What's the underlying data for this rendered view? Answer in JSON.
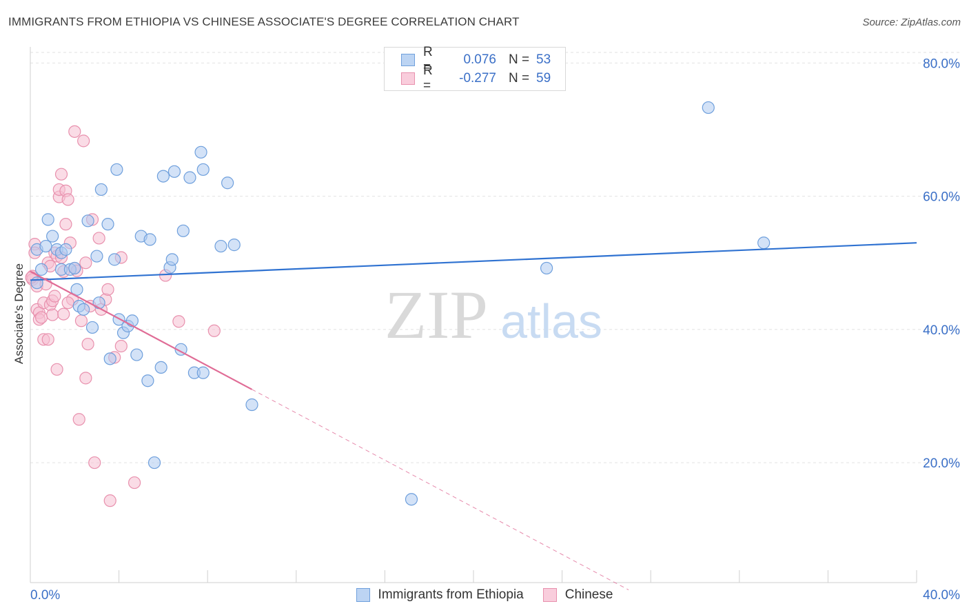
{
  "title": "IMMIGRANTS FROM ETHIOPIA VS CHINESE ASSOCIATE'S DEGREE CORRELATION CHART",
  "source": "Source: ZipAtlas.com",
  "watermark": {
    "zip": "ZIP",
    "atlas": "atlas"
  },
  "legend_top": [
    {
      "r_label": "R =",
      "r_value": "0.076",
      "n_label": "N =",
      "n_value": "53"
    },
    {
      "r_label": "R =",
      "r_value": "-0.277",
      "n_label": "N =",
      "n_value": "59"
    }
  ],
  "legend_bottom": [
    "Immigrants from Ethiopia",
    "Chinese"
  ],
  "colors": {
    "blue_fill": "#aecbf0",
    "blue_stroke": "#6e9fdc",
    "blue_line": "#2f72d1",
    "pink_fill": "#f6bfd2",
    "pink_stroke": "#e890ad",
    "pink_line": "#e06c96",
    "grid": "#e2e2e2",
    "tick_label": "#3a6fc7",
    "watermark_zip": "#d9d9d9",
    "watermark_atlas": "#c8dbf2"
  },
  "chart_data": {
    "type": "scatter",
    "title": "IMMIGRANTS FROM ETHIOPIA VS CHINESE ASSOCIATE'S DEGREE CORRELATION CHART",
    "xlabel": "",
    "ylabel": "Associate's Degree",
    "xlim": [
      0,
      40
    ],
    "ylim": [
      2,
      82
    ],
    "x_tick_labels": [
      "0.0%",
      "40.0%"
    ],
    "y_ticks": [
      20,
      40,
      60,
      80
    ],
    "y_tick_labels": [
      "20.0%",
      "40.0%",
      "60.0%",
      "80.0%"
    ],
    "grid": true,
    "legend_position": "top-center",
    "series": [
      {
        "name": "Immigrants from Ethiopia",
        "color": "#6e9fdc",
        "trend": {
          "x": [
            0,
            40
          ],
          "y": [
            47.4,
            53.0
          ],
          "dashed_x": null
        },
        "points": [
          [
            0.3,
            47.0
          ],
          [
            0.3,
            52.0
          ],
          [
            0.5,
            49.0
          ],
          [
            0.7,
            52.5
          ],
          [
            0.8,
            56.5
          ],
          [
            1.0,
            54.0
          ],
          [
            1.2,
            52.0
          ],
          [
            1.4,
            51.5
          ],
          [
            1.4,
            49.0
          ],
          [
            1.6,
            52.0
          ],
          [
            1.8,
            49.0
          ],
          [
            2.0,
            49.2
          ],
          [
            2.1,
            46.0
          ],
          [
            2.2,
            43.5
          ],
          [
            2.4,
            43.0
          ],
          [
            2.6,
            56.3
          ],
          [
            2.8,
            40.3
          ],
          [
            3.0,
            51.0
          ],
          [
            3.1,
            44.0
          ],
          [
            3.2,
            61.0
          ],
          [
            3.5,
            55.8
          ],
          [
            3.6,
            35.6
          ],
          [
            3.8,
            50.5
          ],
          [
            3.9,
            64.0
          ],
          [
            4.0,
            41.5
          ],
          [
            4.2,
            39.5
          ],
          [
            4.4,
            40.5
          ],
          [
            4.6,
            41.3
          ],
          [
            4.8,
            36.2
          ],
          [
            5.0,
            54.0
          ],
          [
            5.3,
            32.3
          ],
          [
            5.4,
            53.5
          ],
          [
            5.6,
            20.0
          ],
          [
            5.9,
            34.3
          ],
          [
            6.0,
            63.0
          ],
          [
            6.3,
            49.3
          ],
          [
            6.4,
            50.5
          ],
          [
            6.5,
            63.7
          ],
          [
            6.8,
            37.0
          ],
          [
            6.9,
            54.8
          ],
          [
            7.2,
            62.8
          ],
          [
            7.4,
            33.5
          ],
          [
            7.7,
            66.6
          ],
          [
            7.8,
            64.0
          ],
          [
            7.8,
            33.5
          ],
          [
            8.6,
            52.5
          ],
          [
            8.9,
            62.0
          ],
          [
            9.2,
            52.7
          ],
          [
            10.0,
            28.7
          ],
          [
            17.2,
            14.5
          ],
          [
            23.3,
            49.2
          ],
          [
            30.6,
            73.3
          ],
          [
            33.1,
            53.0
          ]
        ]
      },
      {
        "name": "Chinese",
        "color": "#e890ad",
        "trend": {
          "x": [
            0,
            10.0
          ],
          "y": [
            48.7,
            31.0
          ],
          "dashed_x": [
            10.0,
            27.0
          ]
        },
        "points": [
          [
            0.1,
            48.0
          ],
          [
            0.1,
            47.5
          ],
          [
            0.2,
            52.8
          ],
          [
            0.2,
            51.5
          ],
          [
            0.3,
            46.5
          ],
          [
            0.3,
            43.0
          ],
          [
            0.4,
            42.5
          ],
          [
            0.4,
            41.5
          ],
          [
            0.5,
            41.8
          ],
          [
            0.6,
            44.0
          ],
          [
            0.6,
            38.5
          ],
          [
            0.7,
            46.8
          ],
          [
            0.8,
            50.0
          ],
          [
            0.8,
            38.5
          ],
          [
            0.9,
            49.5
          ],
          [
            0.9,
            43.7
          ],
          [
            1.0,
            44.3
          ],
          [
            1.0,
            42.2
          ],
          [
            1.1,
            51.5
          ],
          [
            1.1,
            45.0
          ],
          [
            1.2,
            34.0
          ],
          [
            1.2,
            51.0
          ],
          [
            1.3,
            59.9
          ],
          [
            1.3,
            61.0
          ],
          [
            1.4,
            63.3
          ],
          [
            1.4,
            50.8
          ],
          [
            1.5,
            48.7
          ],
          [
            1.5,
            42.3
          ],
          [
            1.6,
            55.8
          ],
          [
            1.6,
            60.8
          ],
          [
            1.7,
            59.5
          ],
          [
            1.8,
            53.0
          ],
          [
            1.9,
            44.5
          ],
          [
            2.0,
            49.2
          ],
          [
            2.0,
            69.7
          ],
          [
            2.1,
            48.8
          ],
          [
            2.2,
            26.5
          ],
          [
            2.3,
            41.3
          ],
          [
            2.4,
            68.3
          ],
          [
            2.5,
            50.0
          ],
          [
            2.5,
            32.7
          ],
          [
            2.6,
            37.8
          ],
          [
            2.7,
            43.5
          ],
          [
            2.8,
            56.5
          ],
          [
            2.9,
            20.0
          ],
          [
            3.1,
            53.7
          ],
          [
            3.2,
            43.0
          ],
          [
            3.4,
            44.5
          ],
          [
            3.5,
            46.0
          ],
          [
            3.6,
            14.3
          ],
          [
            3.8,
            35.8
          ],
          [
            4.1,
            37.5
          ],
          [
            4.1,
            50.8
          ],
          [
            4.7,
            17.0
          ],
          [
            6.1,
            48.1
          ],
          [
            6.7,
            41.2
          ],
          [
            8.3,
            39.8
          ],
          [
            0.05,
            47.8
          ],
          [
            1.7,
            44.0
          ]
        ]
      }
    ]
  }
}
